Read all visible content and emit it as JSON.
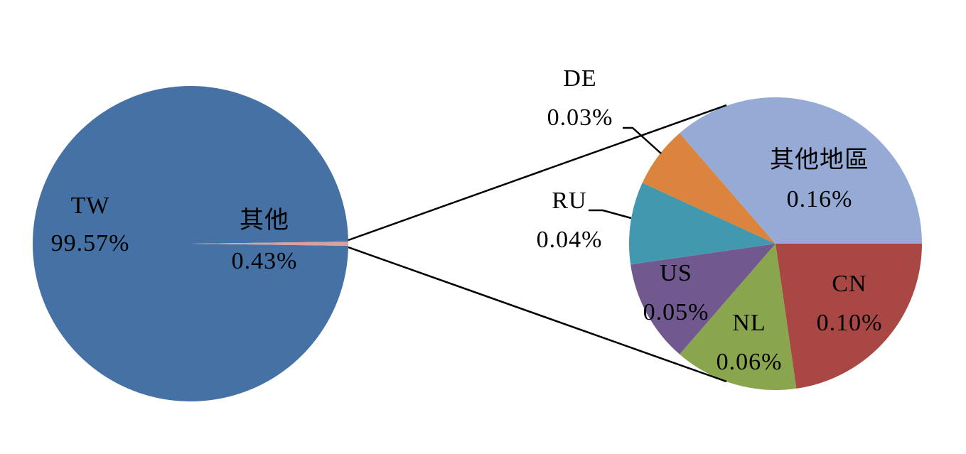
{
  "chart_data": [
    {
      "type": "pie",
      "categories": [
        "TW",
        "其他"
      ],
      "values": [
        99.57,
        0.43
      ],
      "value_labels": [
        "99.57%",
        "0.43%"
      ],
      "colors": [
        "#4571a5",
        "#d9a0a0"
      ]
    },
    {
      "type": "pie",
      "categories": [
        "CN",
        "NL",
        "US",
        "RU",
        "DE",
        "其他地區"
      ],
      "values": [
        0.1,
        0.06,
        0.05,
        0.04,
        0.03,
        0.16
      ],
      "value_labels": [
        "0.10%",
        "0.06%",
        "0.05%",
        "0.04%",
        "0.03%",
        "0.16%"
      ],
      "colors": [
        "#a94744",
        "#89a54e",
        "#71588f",
        "#4198af",
        "#db843d",
        "#95abd5"
      ]
    }
  ]
}
